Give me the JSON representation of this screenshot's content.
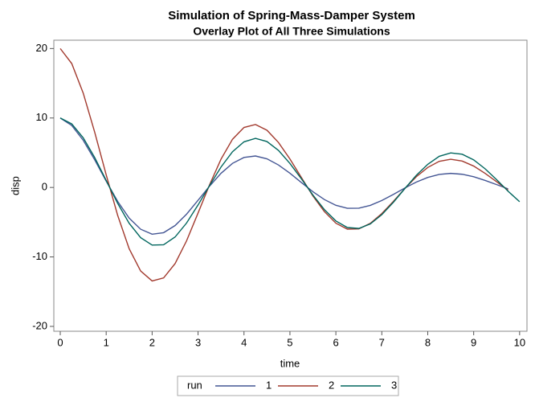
{
  "chart_data": {
    "type": "line",
    "title": "Simulation of Spring-Mass-Damper System",
    "subtitle": "Overlay Plot of All Three Simulations",
    "x_label": "time",
    "y_label": "disp",
    "legend_title": "run",
    "x": [
      0,
      0.25,
      0.5,
      0.75,
      1,
      1.25,
      1.5,
      1.75,
      2,
      2.25,
      2.5,
      2.75,
      3,
      3.25,
      3.5,
      3.75,
      4,
      4.25,
      4.5,
      4.75,
      5,
      5.25,
      5.5,
      5.75,
      6,
      6.25,
      6.5,
      6.75,
      7,
      7.25,
      7.5,
      7.75,
      8,
      8.25,
      8.5,
      8.75,
      9,
      9.25,
      9.5,
      9.75,
      10
    ],
    "series": [
      {
        "name": "1",
        "color": "#445694",
        "values": [
          10,
          8.92,
          6.79,
          3.98,
          0.91,
          -2.01,
          -4.41,
          -6.01,
          -6.73,
          -6.51,
          -5.48,
          -3.84,
          -1.84,
          0.19,
          2.04,
          3.47,
          4.32,
          4.53,
          4.12,
          3.24,
          2.05,
          0.71,
          -0.61,
          -1.74,
          -2.57,
          -3.0,
          -2.98,
          -2.58,
          -1.88,
          -1.01,
          -0.08,
          0.77,
          1.44,
          1.88,
          2.03,
          1.9,
          1.54,
          1.01,
          0.41,
          -0.2,
          null
        ]
      },
      {
        "name": "2",
        "color": "#A23A2E",
        "values": [
          20,
          17.84,
          13.58,
          7.96,
          1.82,
          -4.02,
          -8.82,
          -12.02,
          -13.46,
          -13.02,
          -10.96,
          -7.68,
          -3.68,
          0.38,
          4.08,
          6.94,
          8.64,
          9.06,
          8.24,
          6.48,
          4.1,
          1.42,
          -1.22,
          -3.48,
          -5.14,
          -6.0,
          -5.96,
          -5.16,
          -3.76,
          -2.02,
          -0.16,
          1.54,
          2.88,
          3.76,
          4.06,
          3.8,
          3.08,
          2.02,
          0.82,
          -0.4,
          null
        ]
      },
      {
        "name": "3",
        "color": "#01665E",
        "values": [
          10,
          9.15,
          7.15,
          4.31,
          1.01,
          -2.29,
          -5.16,
          -7.23,
          -8.29,
          -8.25,
          -7.13,
          -5.12,
          -2.52,
          0.27,
          2.94,
          5.14,
          6.57,
          7.07,
          6.61,
          5.34,
          3.46,
          1.24,
          -1.09,
          -3.19,
          -4.82,
          -5.77,
          -5.9,
          -5.25,
          -3.92,
          -2.15,
          -0.17,
          1.74,
          3.33,
          4.48,
          4.97,
          4.78,
          3.97,
          2.68,
          1.12,
          -0.55,
          -2.05
        ]
      }
    ],
    "xlim": [
      -0.14,
      10.16
    ],
    "xticks": [
      0,
      1,
      2,
      3,
      4,
      5,
      6,
      7,
      8,
      9,
      10
    ],
    "ylim": [
      -20.7,
      21.2
    ],
    "yticks": [
      -20,
      -10,
      0,
      10,
      20
    ]
  }
}
